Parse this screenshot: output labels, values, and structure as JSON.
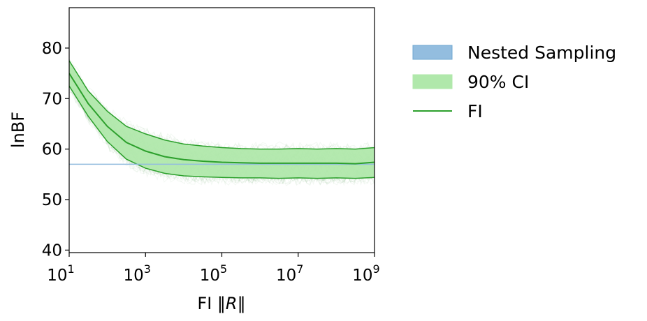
{
  "chart_data": {
    "type": "line",
    "xlabel": "FI ‖R‖",
    "xlabel_parts": {
      "prefix": "FI ",
      "bar_left": "‖",
      "var": "R",
      "bar_right": "‖"
    },
    "ylabel": "lnBF",
    "x_scale": "log",
    "xlim": [
      10,
      1000000000
    ],
    "ylim": [
      39.5,
      88
    ],
    "x_ticks": [
      {
        "base": "10",
        "exp": "1",
        "value": 10
      },
      {
        "base": "10",
        "exp": "3",
        "value": 1000
      },
      {
        "base": "10",
        "exp": "5",
        "value": 100000
      },
      {
        "base": "10",
        "exp": "7",
        "value": 10000000
      },
      {
        "base": "10",
        "exp": "9",
        "value": 1000000000
      }
    ],
    "y_ticks": [
      "40",
      "50",
      "60",
      "70",
      "80"
    ],
    "grid": false,
    "legend_position": "outside-right",
    "series": [
      {
        "name": "Nested Sampling",
        "kind": "hline",
        "value": 57,
        "color": "#93bddf"
      },
      {
        "name": "90% CI",
        "kind": "band",
        "color": "#b0e8ab",
        "x": [
          10,
          31.6,
          100,
          316,
          1000,
          3162,
          10000,
          31623,
          100000,
          316228,
          1000000,
          3162278,
          10000000,
          31622777,
          100000000,
          316227766,
          1000000000
        ],
        "lower": [
          72.5,
          66.5,
          61.5,
          58.0,
          56.2,
          55.2,
          54.7,
          54.5,
          54.4,
          54.3,
          54.3,
          54.2,
          54.3,
          54.2,
          54.3,
          54.2,
          54.4
        ],
        "upper": [
          77.5,
          71.5,
          67.5,
          64.5,
          63.0,
          61.8,
          61.0,
          60.6,
          60.3,
          60.1,
          60.0,
          60.0,
          60.1,
          60.0,
          60.1,
          60.0,
          60.3
        ]
      },
      {
        "name": "FI",
        "kind": "line",
        "color": "#2ca02c",
        "x": [
          10,
          31.6,
          100,
          316,
          1000,
          3162,
          10000,
          31623,
          100000,
          316228,
          1000000,
          3162278,
          10000000,
          31622777,
          100000000,
          316227766,
          1000000000
        ],
        "y": [
          75.0,
          69.0,
          64.5,
          61.3,
          59.6,
          58.5,
          57.9,
          57.6,
          57.4,
          57.3,
          57.2,
          57.2,
          57.2,
          57.2,
          57.2,
          57.1,
          57.4
        ]
      }
    ],
    "sample_traces": {
      "count": 60,
      "color": "#2e8b2e"
    }
  }
}
